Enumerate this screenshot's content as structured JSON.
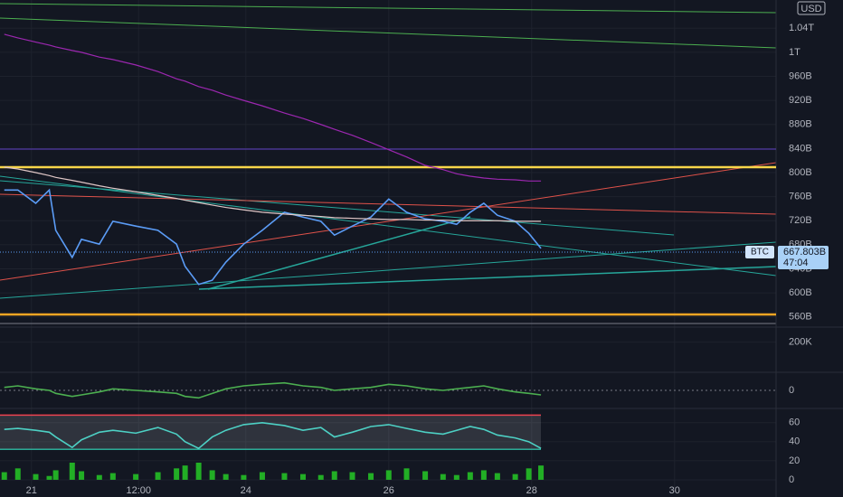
{
  "chart_data": {
    "type": "line",
    "currency": "USD",
    "x": [
      20.62,
      20.81,
      21.06,
      21.25,
      21.34,
      21.57,
      21.7,
      21.95,
      22.14,
      22.46,
      22.77,
      23.03,
      23.15,
      23.34,
      23.53,
      23.72,
      23.97,
      24.23,
      24.54,
      24.8,
      25.05,
      25.24,
      25.49,
      25.75,
      26.0,
      26.25,
      26.51,
      26.76,
      26.95,
      27.14,
      27.33,
      27.52,
      27.77,
      27.96,
      28.13
    ],
    "xlim": [
      20.56,
      31.42
    ],
    "xticks": [
      {
        "value": 21,
        "label": "21"
      },
      {
        "value": 22.5,
        "label": "12:00"
      },
      {
        "value": 24,
        "label": "24"
      },
      {
        "value": 26,
        "label": "26"
      },
      {
        "value": 28,
        "label": "28"
      },
      {
        "value": 30,
        "label": "30"
      }
    ],
    "grid": true,
    "panes": [
      {
        "ylim": [
          543,
          1087
        ],
        "yticks": [
          {
            "value": 560,
            "label": "560B"
          },
          {
            "value": 600,
            "label": "600B"
          },
          {
            "value": 640,
            "label": "640B"
          },
          {
            "value": 680,
            "label": "680B"
          },
          {
            "value": 720,
            "label": "720B"
          },
          {
            "value": 760,
            "label": "760B"
          },
          {
            "value": 800,
            "label": "800B"
          },
          {
            "value": 840,
            "label": "840B"
          },
          {
            "value": 880,
            "label": "880B"
          },
          {
            "value": 920,
            "label": "920B"
          },
          {
            "value": 960,
            "label": "960B"
          },
          {
            "value": 1000,
            "label": "1T"
          },
          {
            "value": 1040,
            "label": "1.04T"
          }
        ],
        "series": [
          {
            "color": "#5b9cf6",
            "values": [
              771,
              771,
              749,
              771,
              704,
              659,
              689,
              681,
              719,
              711,
              704,
              681,
              644,
              614,
              621,
              651,
              681,
              704,
              734,
              726,
              719,
              696,
              711,
              726,
              756,
              734,
              723,
              719,
              714,
              734,
              749,
              729,
              719,
              699,
              674
            ]
          },
          {
            "color": "#9c27b0",
            "values": [
              1030,
              1024,
              1017,
              1012,
              1009,
              1003,
              1000,
              992,
              988,
              979,
              968,
              956,
              952,
              943,
              937,
              929,
              920,
              911,
              899,
              890,
              880,
              872,
              862,
              850,
              838,
              826,
              812,
              805,
              798,
              794,
              791,
              789,
              788,
              786,
              786
            ]
          },
          {
            "color": "#e0c7c7",
            "values": [
              809,
              806,
              800,
              795,
              792,
              787,
              784,
              778,
              774,
              768,
              762,
              757,
              754,
              750,
              746,
              742,
              738,
              734,
              731,
              729,
              727,
              725,
              724,
              723,
              722,
              722,
              721,
              721,
              720,
              720,
              720,
              720,
              719,
              719,
              719
            ]
          }
        ],
        "levels": [
          {
            "value": 839,
            "color": "#5e3fc4"
          },
          {
            "value": 809,
            "color": "#f7d64a"
          },
          {
            "value": 564,
            "color": "#f5a623"
          }
        ],
        "price_tag": {
          "symbol": "BTC",
          "value": 667.803,
          "label": "667.803B",
          "countdown": "47:04"
        }
      },
      {
        "ylim": [
          0,
          300000
        ],
        "yticks": [
          {
            "value": 200000,
            "label": "200K"
          }
        ]
      },
      {
        "ylim": [
          -6,
          6
        ],
        "yticks": [
          0
        ],
        "series": [
          {
            "color": "#4caf50",
            "values": [
              1,
              1.5,
              0.5,
              0,
              -1,
              -2,
              -1.5,
              -0.5,
              0.5,
              0,
              -0.5,
              -1,
              -2,
              -2.5,
              -1,
              0.5,
              1.5,
              2,
              2.5,
              1.5,
              1,
              0,
              0.5,
              1,
              2,
              1.5,
              0.5,
              0,
              0.5,
              1,
              1.5,
              0.5,
              -0.5,
              -1,
              -1.5
            ]
          }
        ]
      },
      {
        "ylim": [
          -8.6,
          75
        ],
        "yticks": [
          0,
          20,
          40,
          60
        ],
        "bands": [
          {
            "value": 68,
            "color": "#f23645"
          },
          {
            "value": 32,
            "color": "#22ab94"
          }
        ],
        "histogram": {
          "color": "#26c926",
          "values": [
            8,
            12,
            6,
            4,
            10,
            18,
            9,
            5,
            7,
            6,
            8,
            12,
            15,
            18,
            10,
            6,
            5,
            8,
            7,
            6,
            5,
            9,
            8,
            7,
            10,
            12,
            9,
            6,
            5,
            8,
            10,
            7,
            6,
            12,
            15
          ]
        },
        "series": [
          {
            "color": "#4dd0c4",
            "values": [
              53,
              54,
              52,
              50,
              45,
              34,
              42,
              50,
              52,
              49,
              55,
              48,
              40,
              33,
              45,
              52,
              58,
              60,
              57,
              52,
              55,
              45,
              50,
              56,
              58,
              54,
              50,
              48,
              52,
              56,
              53,
              47,
              44,
              40,
              33
            ]
          }
        ]
      }
    ]
  }
}
